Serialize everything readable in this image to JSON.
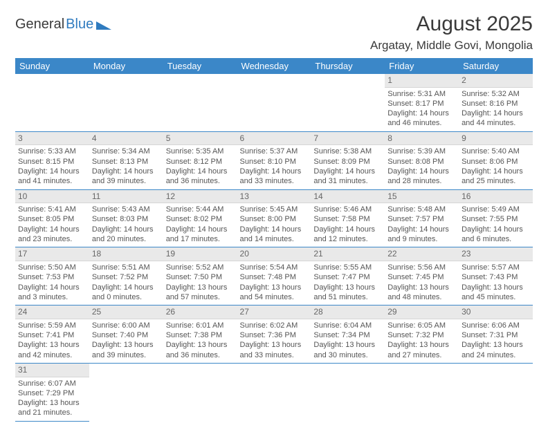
{
  "logo": {
    "text1": "General",
    "text2": "Blue"
  },
  "title": "August 2025",
  "location": "Argatay, Middle Govi, Mongolia",
  "weekdays": [
    "Sunday",
    "Monday",
    "Tuesday",
    "Wednesday",
    "Thursday",
    "Friday",
    "Saturday"
  ],
  "colors": {
    "header_bg": "#3b87c8",
    "header_text": "#ffffff",
    "daynum_bg": "#e9e9e9",
    "text": "#555555",
    "rule": "#3b87c8"
  },
  "weeks": [
    [
      null,
      null,
      null,
      null,
      null,
      {
        "n": "1",
        "sunrise": "5:31 AM",
        "sunset": "8:17 PM",
        "daylight": "14 hours and 46 minutes."
      },
      {
        "n": "2",
        "sunrise": "5:32 AM",
        "sunset": "8:16 PM",
        "daylight": "14 hours and 44 minutes."
      }
    ],
    [
      {
        "n": "3",
        "sunrise": "5:33 AM",
        "sunset": "8:15 PM",
        "daylight": "14 hours and 41 minutes."
      },
      {
        "n": "4",
        "sunrise": "5:34 AM",
        "sunset": "8:13 PM",
        "daylight": "14 hours and 39 minutes."
      },
      {
        "n": "5",
        "sunrise": "5:35 AM",
        "sunset": "8:12 PM",
        "daylight": "14 hours and 36 minutes."
      },
      {
        "n": "6",
        "sunrise": "5:37 AM",
        "sunset": "8:10 PM",
        "daylight": "14 hours and 33 minutes."
      },
      {
        "n": "7",
        "sunrise": "5:38 AM",
        "sunset": "8:09 PM",
        "daylight": "14 hours and 31 minutes."
      },
      {
        "n": "8",
        "sunrise": "5:39 AM",
        "sunset": "8:08 PM",
        "daylight": "14 hours and 28 minutes."
      },
      {
        "n": "9",
        "sunrise": "5:40 AM",
        "sunset": "8:06 PM",
        "daylight": "14 hours and 25 minutes."
      }
    ],
    [
      {
        "n": "10",
        "sunrise": "5:41 AM",
        "sunset": "8:05 PM",
        "daylight": "14 hours and 23 minutes."
      },
      {
        "n": "11",
        "sunrise": "5:43 AM",
        "sunset": "8:03 PM",
        "daylight": "14 hours and 20 minutes."
      },
      {
        "n": "12",
        "sunrise": "5:44 AM",
        "sunset": "8:02 PM",
        "daylight": "14 hours and 17 minutes."
      },
      {
        "n": "13",
        "sunrise": "5:45 AM",
        "sunset": "8:00 PM",
        "daylight": "14 hours and 14 minutes."
      },
      {
        "n": "14",
        "sunrise": "5:46 AM",
        "sunset": "7:58 PM",
        "daylight": "14 hours and 12 minutes."
      },
      {
        "n": "15",
        "sunrise": "5:48 AM",
        "sunset": "7:57 PM",
        "daylight": "14 hours and 9 minutes."
      },
      {
        "n": "16",
        "sunrise": "5:49 AM",
        "sunset": "7:55 PM",
        "daylight": "14 hours and 6 minutes."
      }
    ],
    [
      {
        "n": "17",
        "sunrise": "5:50 AM",
        "sunset": "7:53 PM",
        "daylight": "14 hours and 3 minutes."
      },
      {
        "n": "18",
        "sunrise": "5:51 AM",
        "sunset": "7:52 PM",
        "daylight": "14 hours and 0 minutes."
      },
      {
        "n": "19",
        "sunrise": "5:52 AM",
        "sunset": "7:50 PM",
        "daylight": "13 hours and 57 minutes."
      },
      {
        "n": "20",
        "sunrise": "5:54 AM",
        "sunset": "7:48 PM",
        "daylight": "13 hours and 54 minutes."
      },
      {
        "n": "21",
        "sunrise": "5:55 AM",
        "sunset": "7:47 PM",
        "daylight": "13 hours and 51 minutes."
      },
      {
        "n": "22",
        "sunrise": "5:56 AM",
        "sunset": "7:45 PM",
        "daylight": "13 hours and 48 minutes."
      },
      {
        "n": "23",
        "sunrise": "5:57 AM",
        "sunset": "7:43 PM",
        "daylight": "13 hours and 45 minutes."
      }
    ],
    [
      {
        "n": "24",
        "sunrise": "5:59 AM",
        "sunset": "7:41 PM",
        "daylight": "13 hours and 42 minutes."
      },
      {
        "n": "25",
        "sunrise": "6:00 AM",
        "sunset": "7:40 PM",
        "daylight": "13 hours and 39 minutes."
      },
      {
        "n": "26",
        "sunrise": "6:01 AM",
        "sunset": "7:38 PM",
        "daylight": "13 hours and 36 minutes."
      },
      {
        "n": "27",
        "sunrise": "6:02 AM",
        "sunset": "7:36 PM",
        "daylight": "13 hours and 33 minutes."
      },
      {
        "n": "28",
        "sunrise": "6:04 AM",
        "sunset": "7:34 PM",
        "daylight": "13 hours and 30 minutes."
      },
      {
        "n": "29",
        "sunrise": "6:05 AM",
        "sunset": "7:32 PM",
        "daylight": "13 hours and 27 minutes."
      },
      {
        "n": "30",
        "sunrise": "6:06 AM",
        "sunset": "7:31 PM",
        "daylight": "13 hours and 24 minutes."
      }
    ],
    [
      {
        "n": "31",
        "sunrise": "6:07 AM",
        "sunset": "7:29 PM",
        "daylight": "13 hours and 21 minutes."
      },
      null,
      null,
      null,
      null,
      null,
      null
    ]
  ],
  "labels": {
    "sunrise": "Sunrise:",
    "sunset": "Sunset:",
    "daylight": "Daylight:"
  }
}
